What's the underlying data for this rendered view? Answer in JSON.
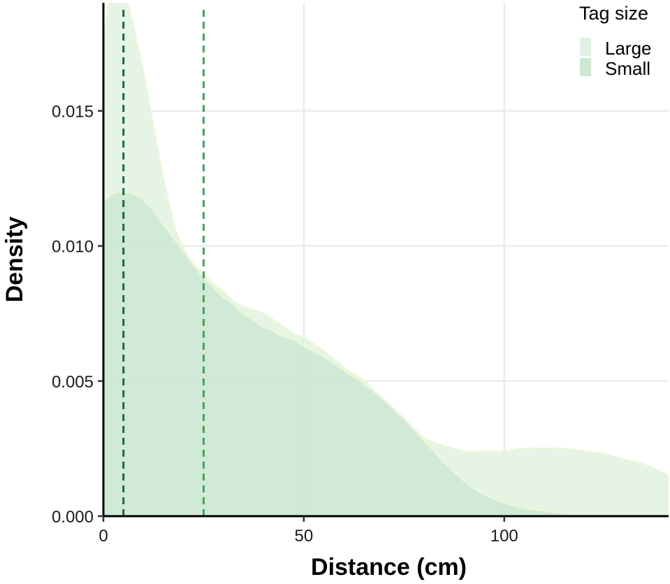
{
  "chart_data": {
    "type": "area",
    "xlabel": "Distance (cm)",
    "ylabel": "Density",
    "xlim": [
      0,
      141
    ],
    "ylim": [
      0,
      0.019
    ],
    "x_ticks": [
      0,
      50,
      100
    ],
    "x_tick_labels": [
      "0",
      "50",
      "100"
    ],
    "y_ticks": [
      0,
      0.005,
      0.01,
      0.015
    ],
    "y_tick_labels": [
      "0.000",
      "0.005",
      "0.010",
      "0.015"
    ],
    "grid": true,
    "legend": {
      "title": "Tag size",
      "position": "top-right",
      "entries": [
        "Large",
        "Small"
      ]
    },
    "series": [
      {
        "name": "Large",
        "color": "#e2f2e2",
        "edge_color": "#eaf7d8",
        "x": [
          0,
          2,
          4,
          6,
          8,
          10,
          12,
          14,
          16,
          18,
          20,
          22,
          24,
          26,
          28,
          30,
          32,
          34,
          36,
          38,
          40,
          42,
          44,
          46,
          48,
          50,
          55,
          60,
          65,
          70,
          75,
          80,
          85,
          90,
          95,
          100,
          105,
          110,
          115,
          120,
          125,
          130,
          135,
          141
        ],
        "y": [
          0.0175,
          0.0195,
          0.0196,
          0.019,
          0.0178,
          0.0164,
          0.0148,
          0.0132,
          0.0118,
          0.0106,
          0.0099,
          0.0094,
          0.0091,
          0.0088,
          0.0085,
          0.0083,
          0.008,
          0.0078,
          0.0077,
          0.0076,
          0.0075,
          0.0073,
          0.0071,
          0.0069,
          0.0067,
          0.0066,
          0.0061,
          0.0055,
          0.005,
          0.0043,
          0.0036,
          0.0029,
          0.0026,
          0.0024,
          0.0024,
          0.0024,
          0.0025,
          0.0025,
          0.0025,
          0.0024,
          0.0023,
          0.0021,
          0.0019,
          0.0015
        ]
      },
      {
        "name": "Small",
        "color": "#cde8d3",
        "edge_color": "#eaf7d8",
        "x": [
          0,
          2,
          4,
          6,
          8,
          10,
          12,
          14,
          16,
          18,
          20,
          22,
          24,
          26,
          28,
          30,
          32,
          34,
          36,
          38,
          40,
          42,
          44,
          46,
          48,
          50,
          55,
          60,
          65,
          70,
          75,
          80,
          85,
          90,
          95,
          100,
          105,
          110,
          115,
          120,
          125,
          130,
          135,
          141
        ],
        "y": [
          0.0117,
          0.0119,
          0.012,
          0.012,
          0.0119,
          0.0117,
          0.0114,
          0.011,
          0.0106,
          0.0102,
          0.0098,
          0.0094,
          0.009,
          0.0087,
          0.0084,
          0.0081,
          0.0079,
          0.0076,
          0.0074,
          0.0072,
          0.007,
          0.0069,
          0.0067,
          0.0066,
          0.0065,
          0.0063,
          0.0059,
          0.0054,
          0.0049,
          0.0043,
          0.0036,
          0.0028,
          0.002,
          0.0013,
          0.0008,
          0.0005,
          0.0003,
          0.0002,
          0.0001,
          5e-05,
          2e-05,
          1e-05,
          0.0,
          0.0
        ]
      }
    ],
    "reference_lines": [
      {
        "x": 5,
        "color": "#1b6b32"
      },
      {
        "x": 25,
        "color": "#41a35a"
      }
    ]
  }
}
